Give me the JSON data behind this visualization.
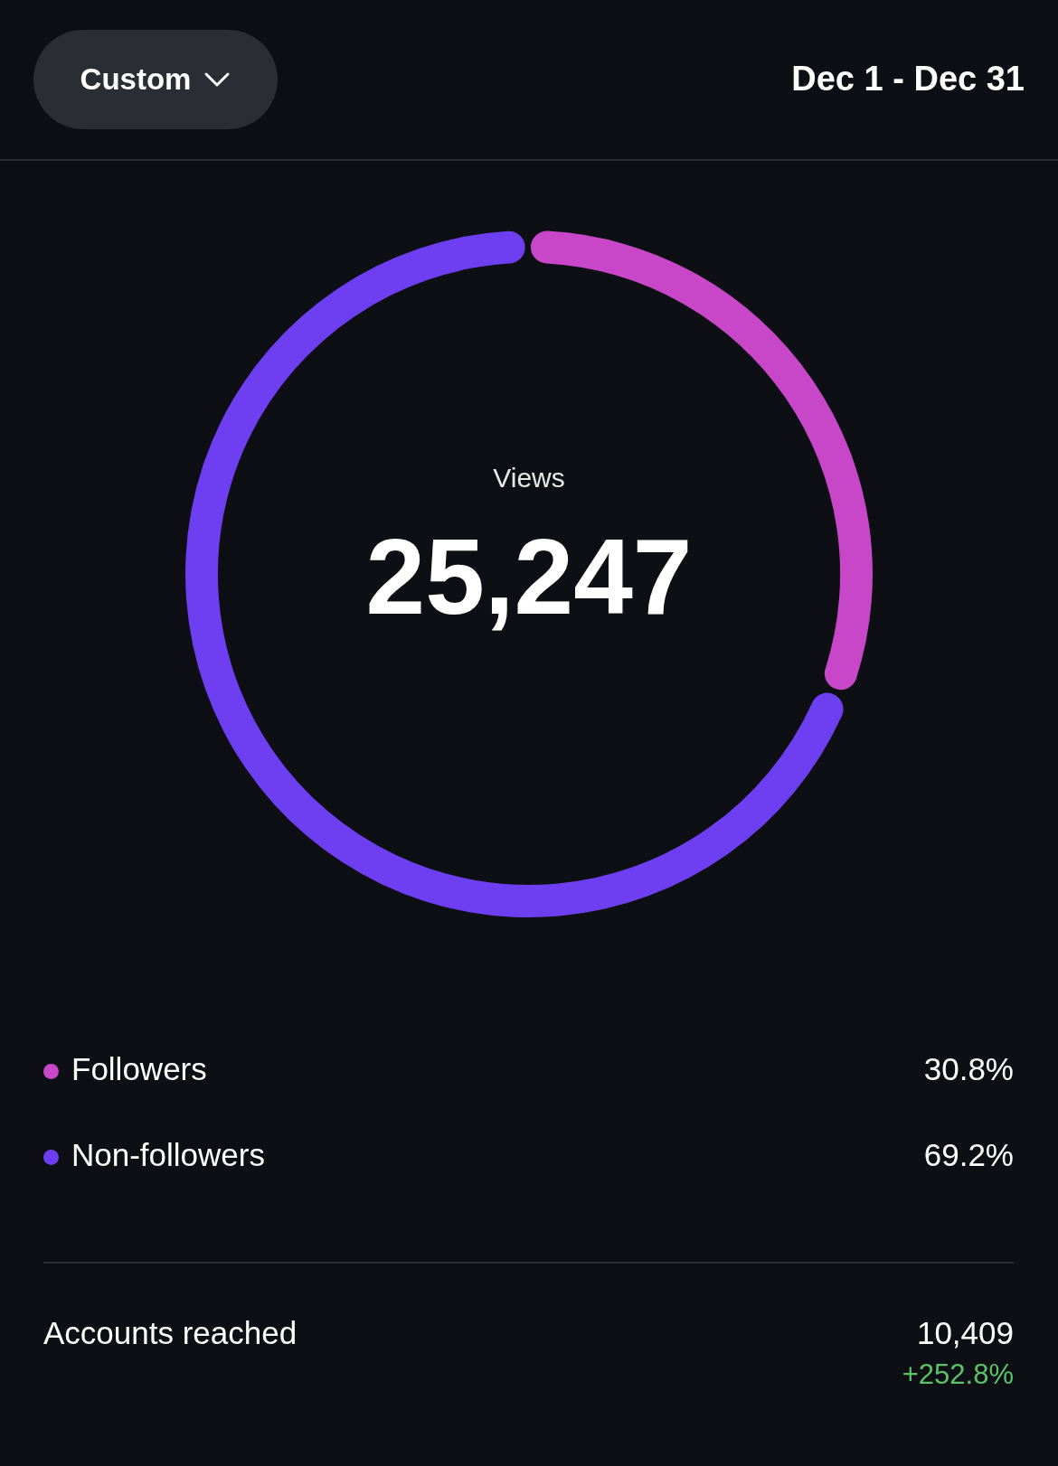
{
  "chart_data": {
    "type": "donut",
    "subtitle": "Dec 1 - Dec 31",
    "categories": [
      "Followers",
      "Non-followers"
    ],
    "values": [
      30.8,
      69.2
    ],
    "colors": [
      "#c847c9",
      "#6e3ff0"
    ],
    "value_labels": [
      "30.8%",
      "69.2%"
    ],
    "legend": "bottom",
    "annotations": [
      "Custom",
      "Views",
      "25,247",
      "Accounts reached",
      "10,409",
      "+252.8%"
    ]
  }
}
